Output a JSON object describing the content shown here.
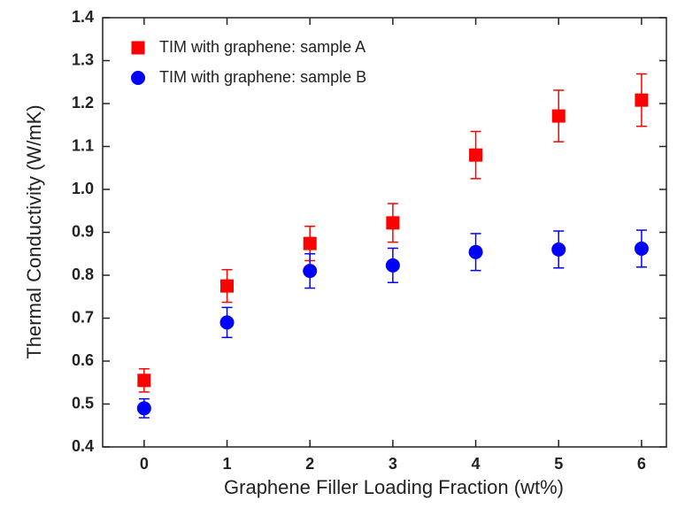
{
  "chart_data": {
    "type": "scatter",
    "x_label": "Graphene Filler Loading Fraction  (wt%)",
    "y_label": "Thermal Conductivity (W/mK)",
    "x": [
      0,
      1,
      2,
      3,
      4,
      5,
      6
    ],
    "series": [
      {
        "name": "TIM with graphene: sample A",
        "color": "#ff0000",
        "marker": "square",
        "values": [
          0.555,
          0.775,
          0.874,
          0.922,
          1.08,
          1.171,
          1.208
        ],
        "errors": [
          0.027,
          0.038,
          0.04,
          0.045,
          0.055,
          0.06,
          0.061
        ]
      },
      {
        "name": "TIM with graphene: sample B",
        "color": "#0000ff",
        "marker": "circle",
        "values": [
          0.49,
          0.69,
          0.81,
          0.823,
          0.854,
          0.86,
          0.862
        ],
        "errors": [
          0.022,
          0.035,
          0.04,
          0.04,
          0.043,
          0.043,
          0.043
        ]
      }
    ],
    "xlim": [
      -0.5,
      6.3
    ],
    "xticks": [
      0,
      1,
      2,
      3,
      4,
      5,
      6
    ],
    "ylim": [
      0.4,
      1.4
    ],
    "yticks": [
      0.4,
      0.5,
      0.6,
      0.7,
      0.8,
      0.9,
      {
        "value": 1,
        "label": "1.0"
      },
      1.1,
      1.2,
      1.3,
      1.4
    ],
    "legend": "upper left"
  }
}
